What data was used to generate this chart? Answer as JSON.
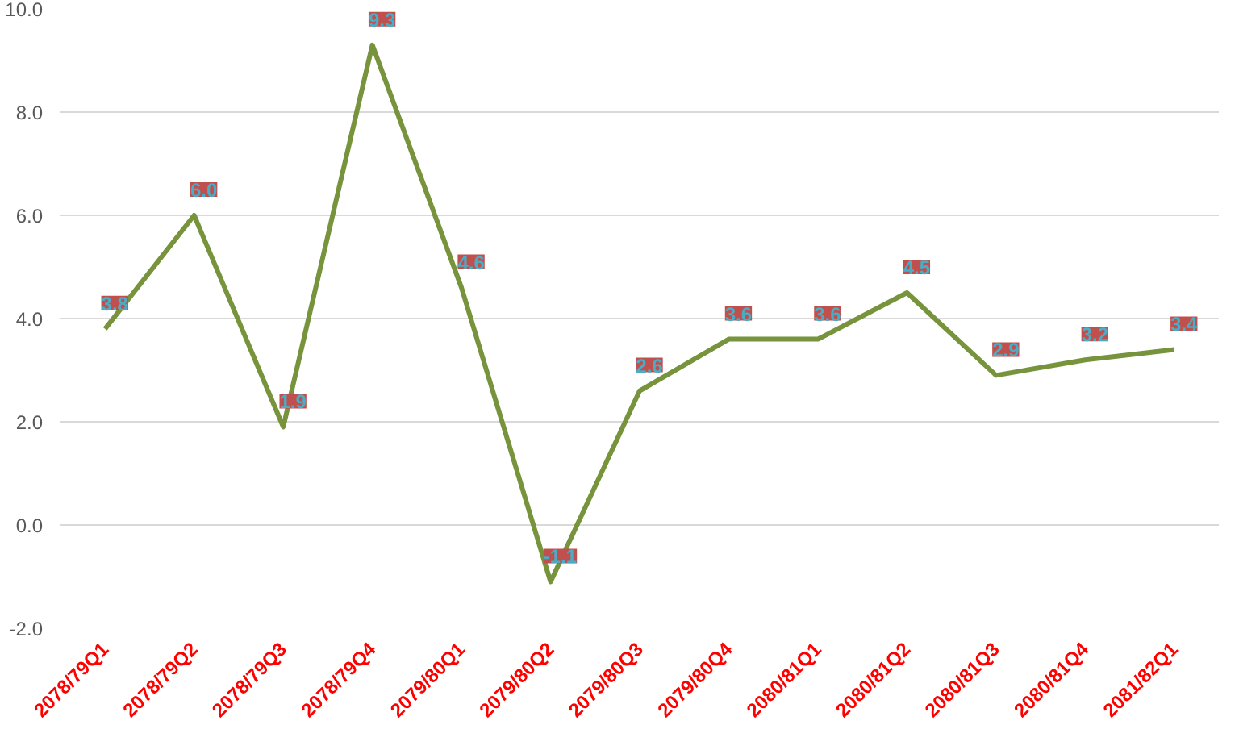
{
  "chart_data": {
    "type": "line",
    "categories": [
      "2078/79Q1",
      "2078/79Q2",
      "2078/79Q3",
      "2078/79Q4",
      "2079/80Q1",
      "2079/80Q2",
      "2079/80Q3",
      "2079/80Q4",
      "2080/81Q1",
      "2080/81Q2",
      "2080/81Q3",
      "2080/81Q4",
      "2081/82Q1"
    ],
    "series": [
      {
        "color": "#77933c",
        "values": [
          3.8,
          6.0,
          1.9,
          9.3,
          4.6,
          -1.1,
          2.6,
          3.6,
          3.6,
          4.5,
          2.9,
          3.2,
          3.4
        ],
        "value_labels": [
          "3.8",
          "6.0",
          "1.9",
          "9.3",
          "4.6",
          "-1.1",
          "2.6",
          "3.6",
          "3.6",
          "4.5",
          "2.9",
          "3.2",
          "3.4"
        ]
      }
    ],
    "ylim": [
      -2,
      10
    ],
    "yticks": [
      {
        "value": -2,
        "label": "-2.0"
      },
      {
        "value": 0,
        "label": "0.0"
      },
      {
        "value": 2,
        "label": "2.0"
      },
      {
        "value": 4,
        "label": "4.0"
      },
      {
        "value": 6,
        "label": "6.0"
      },
      {
        "value": 8,
        "label": "8.0"
      },
      {
        "value": 10,
        "label": "10.0"
      }
    ],
    "grid": "y",
    "line_style": "solid"
  }
}
